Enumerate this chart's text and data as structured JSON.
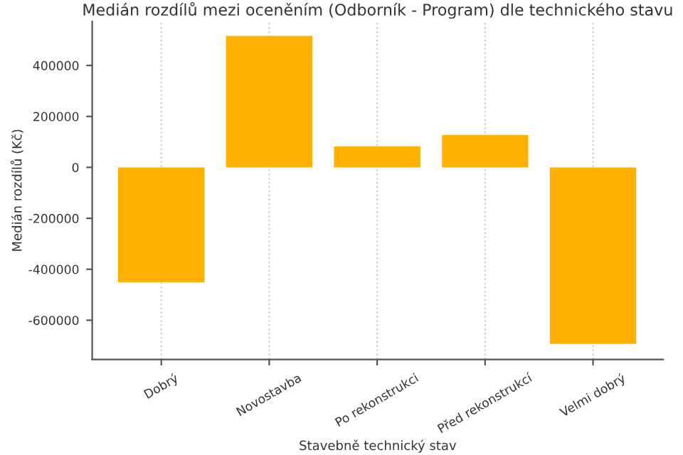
{
  "chart_data": {
    "type": "bar",
    "title": "Medián rozdílů mezi oceněním (Odborník - Program) dle technického stavu",
    "xlabel": "Stavebně technický stav",
    "ylabel": "Medián rozdílů (Kč)",
    "categories": [
      "Dobrý",
      "Novostavba",
      "Po rekonstrukci",
      "Před rekonstrukcí",
      "Velmi dobrý"
    ],
    "values": [
      -451000,
      516000,
      82000,
      127000,
      -693000
    ],
    "color": "#ffb000",
    "ylim": [
      -754000,
      573000
    ],
    "yticks": [
      -600000,
      -400000,
      -200000,
      0,
      200000,
      400000
    ],
    "grid": "x"
  }
}
